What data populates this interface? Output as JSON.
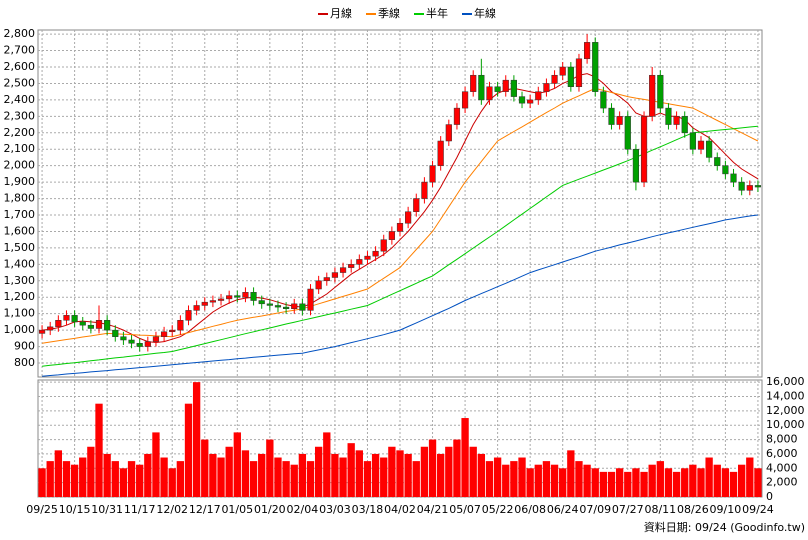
{
  "chart_data": {
    "type": "candlestick",
    "footer": "資料日期: 09/24 (Goodinfo.tw)",
    "grid": true,
    "categories": [
      "09/25",
      null,
      null,
      null,
      "10/15",
      null,
      null,
      null,
      "10/31",
      null,
      null,
      null,
      "11/17",
      null,
      null,
      null,
      "12/02",
      null,
      null,
      null,
      "12/17",
      null,
      null,
      null,
      "01/05",
      null,
      null,
      null,
      "01/20",
      null,
      null,
      null,
      "02/04",
      null,
      null,
      null,
      "03/03",
      null,
      null,
      null,
      "03/18",
      null,
      null,
      null,
      "04/02",
      null,
      null,
      null,
      "04/21",
      null,
      null,
      null,
      "05/07",
      null,
      null,
      null,
      "05/22",
      null,
      null,
      null,
      "06/08",
      null,
      null,
      null,
      "06/24",
      null,
      null,
      null,
      "07/09",
      null,
      null,
      null,
      "07/27",
      null,
      null,
      null,
      "08/11",
      null,
      null,
      null,
      "08/26",
      null,
      null,
      null,
      "09/10",
      null,
      null,
      null,
      "09/24"
    ],
    "up_color": "#ff0000",
    "down_color": "#00a000",
    "open": [
      980,
      1000,
      1020,
      1060,
      1090,
      1050,
      1030,
      1010,
      1060,
      1000,
      960,
      940,
      920,
      900,
      930,
      960,
      990,
      1000,
      1060,
      1120,
      1150,
      1170,
      1180,
      1190,
      1210,
      1200,
      1230,
      1180,
      1160,
      1150,
      1140,
      1130,
      1160,
      1120,
      1250,
      1300,
      1320,
      1350,
      1380,
      1400,
      1430,
      1450,
      1480,
      1550,
      1600,
      1650,
      1720,
      1800,
      1900,
      2000,
      2150,
      2250,
      2350,
      2450,
      2550,
      2400,
      2480,
      2450,
      2520,
      2420,
      2380,
      2400,
      2450,
      2500,
      2550,
      2600,
      2480,
      2650,
      2750,
      2450,
      2350,
      2250,
      2300,
      2100,
      1900,
      2300,
      2550,
      2350,
      2250,
      2300,
      2200,
      2100,
      2150,
      2050,
      2000,
      1950,
      1900,
      1850,
      1880
    ],
    "high": [
      1030,
      1050,
      1090,
      1120,
      1120,
      1080,
      1060,
      1150,
      1090,
      1030,
      990,
      970,
      950,
      960,
      990,
      1020,
      1030,
      1090,
      1150,
      1180,
      1200,
      1210,
      1220,
      1240,
      1240,
      1260,
      1260,
      1210,
      1190,
      1180,
      1170,
      1190,
      1190,
      1280,
      1330,
      1350,
      1380,
      1410,
      1430,
      1460,
      1480,
      1510,
      1580,
      1630,
      1680,
      1750,
      1830,
      1930,
      2030,
      2180,
      2280,
      2380,
      2480,
      2580,
      2650,
      2510,
      2510,
      2550,
      2550,
      2450,
      2430,
      2480,
      2530,
      2580,
      2630,
      2630,
      2680,
      2800,
      2780,
      2480,
      2380,
      2330,
      2330,
      2130,
      2330,
      2600,
      2580,
      2380,
      2330,
      2330,
      2230,
      2180,
      2180,
      2080,
      2030,
      1980,
      1930,
      1910,
      1910
    ],
    "low": [
      950,
      970,
      990,
      1030,
      1020,
      1000,
      980,
      980,
      970,
      930,
      910,
      890,
      870,
      870,
      900,
      930,
      960,
      970,
      1030,
      1090,
      1120,
      1140,
      1150,
      1160,
      1170,
      1170,
      1150,
      1130,
      1120,
      1110,
      1100,
      1100,
      1090,
      1090,
      1220,
      1270,
      1290,
      1320,
      1350,
      1370,
      1400,
      1420,
      1450,
      1520,
      1570,
      1620,
      1690,
      1770,
      1870,
      1970,
      2120,
      2220,
      2320,
      2420,
      2370,
      2370,
      2420,
      2420,
      2390,
      2350,
      2350,
      2370,
      2420,
      2470,
      2520,
      2450,
      2450,
      2620,
      2420,
      2320,
      2220,
      2220,
      2070,
      1850,
      1870,
      2270,
      2320,
      2220,
      2220,
      2170,
      2070,
      2070,
      2020,
      1970,
      1920,
      1870,
      1820,
      1820,
      1840
    ],
    "close": [
      1000,
      1020,
      1060,
      1090,
      1050,
      1030,
      1010,
      1060,
      1000,
      960,
      940,
      920,
      900,
      930,
      960,
      990,
      1000,
      1060,
      1120,
      1150,
      1170,
      1180,
      1190,
      1210,
      1200,
      1230,
      1180,
      1160,
      1150,
      1140,
      1130,
      1160,
      1120,
      1250,
      1300,
      1320,
      1350,
      1380,
      1400,
      1430,
      1450,
      1480,
      1550,
      1600,
      1650,
      1720,
      1800,
      1900,
      2000,
      2150,
      2250,
      2350,
      2450,
      2550,
      2400,
      2480,
      2450,
      2520,
      2420,
      2380,
      2400,
      2450,
      2500,
      2550,
      2600,
      2480,
      2650,
      2750,
      2450,
      2350,
      2250,
      2300,
      2100,
      1900,
      2300,
      2550,
      2350,
      2250,
      2300,
      2200,
      2100,
      2150,
      2050,
      2000,
      1950,
      1900,
      1850,
      1880,
      1870
    ],
    "series": [
      {
        "name": "月線",
        "color": "#cc0000",
        "values": [
          1000,
          1005,
          1015,
          1030,
          1050,
          1055,
          1050,
          1045,
          1035,
          1020,
          1000,
          975,
          950,
          930,
          925,
          930,
          945,
          960,
          990,
          1030,
          1070,
          1110,
          1140,
          1165,
          1185,
          1195,
          1200,
          1195,
          1185,
          1170,
          1155,
          1145,
          1140,
          1160,
          1190,
          1220,
          1260,
          1300,
          1340,
          1370,
          1400,
          1430,
          1460,
          1500,
          1550,
          1600,
          1660,
          1720,
          1790,
          1870,
          1960,
          2050,
          2150,
          2250,
          2330,
          2400,
          2440,
          2460,
          2470,
          2460,
          2450,
          2440,
          2450,
          2470,
          2500,
          2520,
          2550,
          2560,
          2540,
          2500,
          2450,
          2420,
          2380,
          2320,
          2300,
          2300,
          2320,
          2300,
          2300,
          2280,
          2230,
          2200,
          2170,
          2120,
          2070,
          2020,
          1980,
          1950,
          1920
        ]
      },
      {
        "name": "季線",
        "color": "#ff8000",
        "values": [
          920,
          928,
          935,
          943,
          950,
          958,
          965,
          973,
          980,
          978,
          975,
          973,
          970,
          968,
          965,
          963,
          960,
          973,
          985,
          998,
          1010,
          1023,
          1035,
          1048,
          1060,
          1069,
          1078,
          1086,
          1095,
          1104,
          1113,
          1121,
          1130,
          1145,
          1160,
          1175,
          1190,
          1205,
          1220,
          1235,
          1250,
          1283,
          1315,
          1348,
          1380,
          1435,
          1490,
          1545,
          1600,
          1675,
          1750,
          1825,
          1900,
          1963,
          2025,
          2088,
          2150,
          2179,
          2208,
          2236,
          2265,
          2294,
          2323,
          2351,
          2380,
          2403,
          2425,
          2448,
          2470,
          2458,
          2445,
          2433,
          2420,
          2411,
          2403,
          2394,
          2385,
          2376,
          2368,
          2359,
          2350,
          2325,
          2300,
          2275,
          2250,
          2225,
          2200,
          2175,
          2150
        ]
      },
      {
        "name": "半年",
        "color": "#00cc00",
        "values": [
          780,
          786,
          791,
          797,
          802,
          808,
          814,
          819,
          825,
          831,
          836,
          842,
          847,
          853,
          859,
          864,
          870,
          882,
          894,
          906,
          918,
          930,
          942,
          954,
          966,
          978,
          990,
          1002,
          1013,
          1025,
          1037,
          1048,
          1060,
          1071,
          1082,
          1093,
          1104,
          1116,
          1127,
          1138,
          1150,
          1172,
          1195,
          1218,
          1240,
          1262,
          1285,
          1308,
          1330,
          1364,
          1398,
          1431,
          1465,
          1499,
          1532,
          1566,
          1600,
          1635,
          1670,
          1705,
          1740,
          1775,
          1810,
          1845,
          1880,
          1899,
          1918,
          1936,
          1955,
          1974,
          1992,
          2011,
          2030,
          2051,
          2072,
          2094,
          2115,
          2136,
          2158,
          2179,
          2200,
          2205,
          2210,
          2215,
          2220,
          2225,
          2230,
          2235,
          2240
        ]
      },
      {
        "name": "年線",
        "color": "#0050c0",
        "values": [
          720,
          724,
          728,
          733,
          737,
          741,
          746,
          750,
          754,
          759,
          763,
          767,
          772,
          776,
          780,
          785,
          790,
          794,
          799,
          803,
          808,
          812,
          817,
          821,
          826,
          830,
          835,
          839,
          843,
          848,
          852,
          856,
          860,
          870,
          880,
          890,
          900,
          912,
          924,
          936,
          948,
          960,
          972,
          986,
          1000,
          1022,
          1044,
          1066,
          1088,
          1110,
          1132,
          1156,
          1180,
          1201,
          1222,
          1243,
          1264,
          1285,
          1306,
          1328,
          1350,
          1366,
          1382,
          1398,
          1414,
          1430,
          1446,
          1463,
          1480,
          1492,
          1505,
          1518,
          1530,
          1542,
          1555,
          1568,
          1580,
          1591,
          1602,
          1614,
          1625,
          1636,
          1647,
          1658,
          1670,
          1678,
          1686,
          1694,
          1700
        ]
      }
    ],
    "ylim": [
      715,
      2825
    ],
    "yticks": [
      800,
      900,
      {
        "value": 1000,
        "label": "1,000"
      },
      {
        "value": 1100,
        "label": "1,100"
      },
      {
        "value": 1200,
        "label": "1,200"
      },
      {
        "value": 1300,
        "label": "1,300"
      },
      {
        "value": 1400,
        "label": "1,400"
      },
      {
        "value": 1500,
        "label": "1,500"
      },
      {
        "value": 1600,
        "label": "1,600"
      },
      {
        "value": 1700,
        "label": "1,700"
      },
      {
        "value": 1800,
        "label": "1,800"
      },
      {
        "value": 1900,
        "label": "1,900"
      },
      {
        "value": 2000,
        "label": "2,000"
      },
      {
        "value": 2100,
        "label": "2,100"
      },
      {
        "value": 2200,
        "label": "2,200"
      },
      {
        "value": 2300,
        "label": "2,300"
      },
      {
        "value": 2400,
        "label": "2,400"
      },
      {
        "value": 2500,
        "label": "2,500"
      },
      {
        "value": 2600,
        "label": "2,600"
      },
      {
        "value": 2700,
        "label": "2,700"
      },
      {
        "value": 2800,
        "label": "2,800"
      }
    ],
    "volume": {
      "color": "#ff0000",
      "values": [
        4000,
        5000,
        6500,
        5000,
        4500,
        5500,
        7000,
        13000,
        6000,
        5000,
        4000,
        5000,
        4500,
        6000,
        9000,
        5500,
        4000,
        5000,
        13000,
        16000,
        8000,
        6000,
        5500,
        7000,
        9000,
        6500,
        5000,
        6000,
        8000,
        5500,
        5000,
        4500,
        6000,
        5000,
        7000,
        9000,
        6000,
        5500,
        7500,
        6500,
        5000,
        6000,
        5500,
        7000,
        6500,
        6000,
        5000,
        7000,
        8000,
        6000,
        7000,
        8000,
        11000,
        7000,
        6000,
        5000,
        5500,
        4500,
        5000,
        5500,
        4000,
        4500,
        5000,
        4500,
        4000,
        6500,
        5000,
        4500,
        4000,
        3500,
        3500,
        4000,
        3500,
        4000,
        3500,
        4500,
        5000,
        4000,
        3500,
        4000,
        4500,
        4000,
        5500,
        4500,
        4000,
        3500,
        4500,
        5500,
        4000
      ],
      "ylim": [
        0,
        16300
      ],
      "yticks": [
        0,
        {
          "value": 2000,
          "label": "2,000"
        },
        {
          "value": 4000,
          "label": "4,000"
        },
        {
          "value": 6000,
          "label": "6,000"
        },
        {
          "value": 8000,
          "label": "8,000"
        },
        {
          "value": 10000,
          "label": "10,000"
        },
        {
          "value": 12000,
          "label": "12,000"
        },
        {
          "value": 14000,
          "label": "14,000"
        },
        {
          "value": 16000,
          "label": "16,000"
        }
      ]
    }
  }
}
